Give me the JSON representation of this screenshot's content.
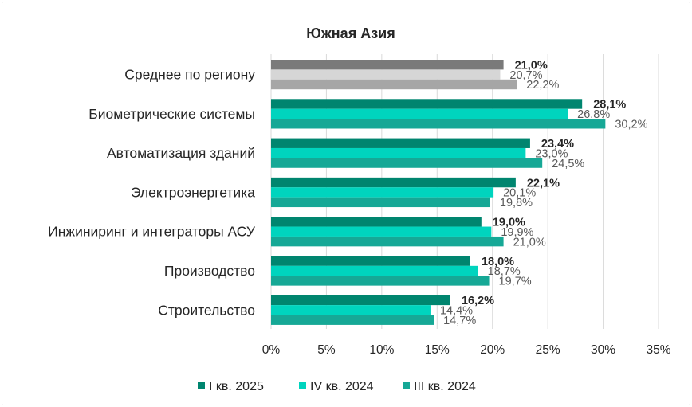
{
  "chart_data": {
    "type": "bar",
    "orientation": "horizontal",
    "title": "Южная Азия",
    "categories": [
      "Среднее по региону",
      "Биометрические системы",
      "Автоматизация зданий",
      "Электроэнергетика",
      "Инжиниринг и интеграторы АСУ",
      "Производство",
      "Строительство"
    ],
    "series": [
      {
        "name": "I кв. 2025",
        "values": [
          21.0,
          28.1,
          23.4,
          22.1,
          19.0,
          18.0,
          16.2
        ]
      },
      {
        "name": "IV кв. 2024",
        "values": [
          20.7,
          26.8,
          23.0,
          20.1,
          19.9,
          18.7,
          14.4
        ]
      },
      {
        "name": "III кв. 2024",
        "values": [
          22.2,
          30.2,
          24.5,
          19.8,
          21.0,
          19.7,
          14.7
        ]
      }
    ],
    "data_labels": [
      [
        "21,0%",
        "28,1%",
        "23,4%",
        "22,1%",
        "19,0%",
        "18,0%",
        "16,2%"
      ],
      [
        "20,7%",
        "26,8%",
        "23,0%",
        "20,1%",
        "19,9%",
        "18,7%",
        "14,4%"
      ],
      [
        "22,2%",
        "30,2%",
        "24,5%",
        "19,8%",
        "21,0%",
        "19,7%",
        "14,7%"
      ]
    ],
    "xlim": [
      0,
      35
    ],
    "x_ticks": [
      0,
      5,
      10,
      15,
      20,
      25,
      30,
      35
    ],
    "x_tick_labels": [
      "0%",
      "5%",
      "10%",
      "15%",
      "20%",
      "25%",
      "30%",
      "35%"
    ],
    "grid": true,
    "legend_position": "bottom",
    "colors": {
      "series": [
        "#00856f",
        "#00d4be",
        "#16a896"
      ],
      "average_series": [
        "#7a7a7a",
        "#d6d6d6",
        "#a6a6a6"
      ],
      "grid": "#d9d9d9",
      "text": "#262626",
      "label_muted": "#595959"
    }
  }
}
